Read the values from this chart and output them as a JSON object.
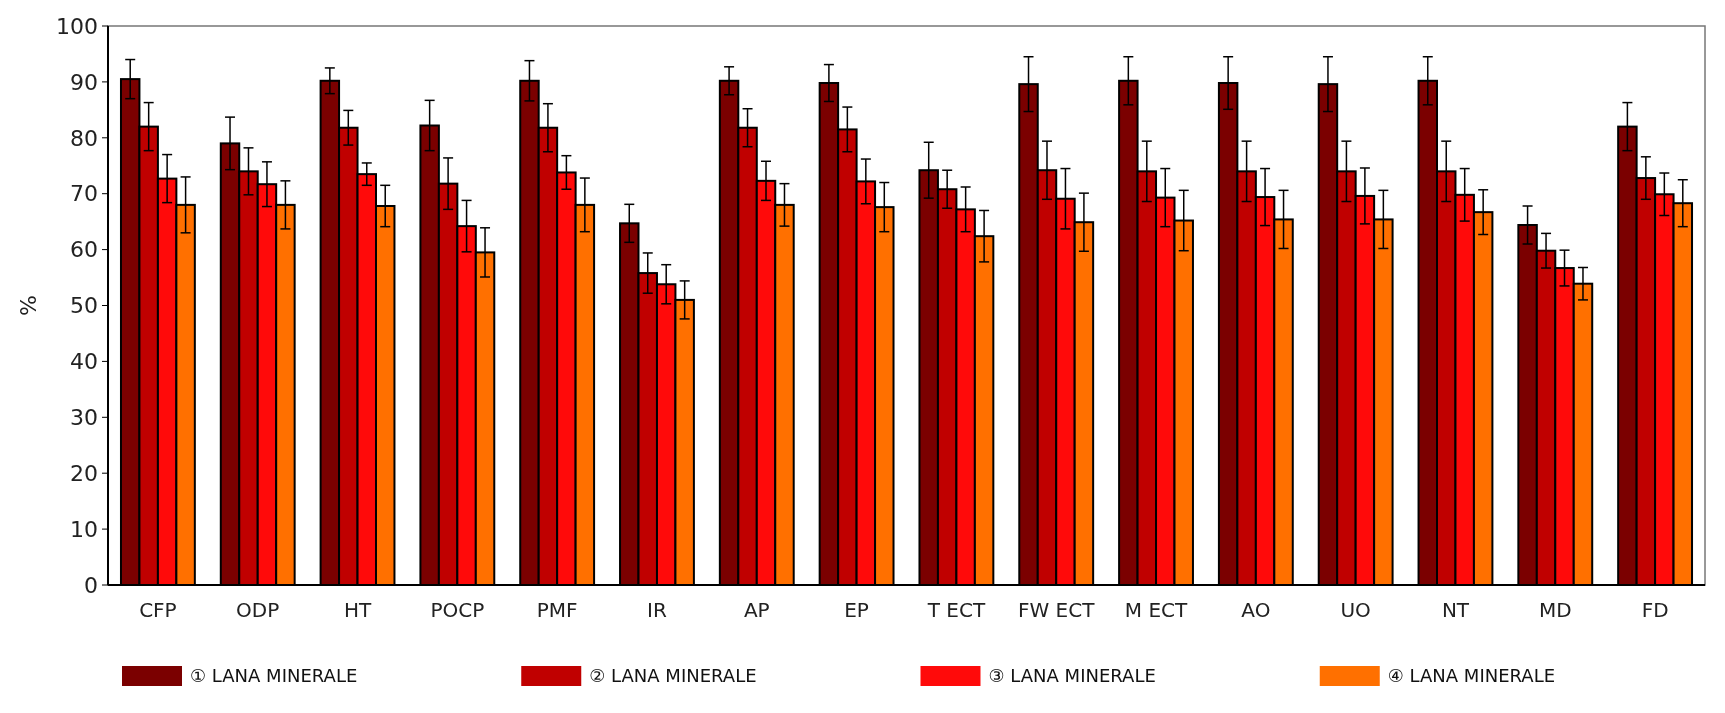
{
  "chart_data": {
    "type": "bar",
    "ylabel": "%",
    "categories": [
      "CFP",
      "ODP",
      "HT",
      "POCP",
      "PMF",
      "IR",
      "AP",
      "EP",
      "T ECT",
      "FW ECT",
      "M ECT",
      "AO",
      "UO",
      "NT",
      "MD",
      "FD"
    ],
    "ylim": [
      0,
      100
    ],
    "yticks": [
      0,
      10,
      20,
      30,
      40,
      50,
      60,
      70,
      80,
      90,
      100
    ],
    "grid": false,
    "legend": "bottom",
    "series": [
      {
        "name": "① LANA MINERALE",
        "color": "#7b0000",
        "values": [
          90.5,
          79,
          90.2,
          82.2,
          90.2,
          64.7,
          90.2,
          89.8,
          74.2,
          89.6,
          90.2,
          89.8,
          89.6,
          90.2,
          64.4,
          82
        ],
        "errors": [
          3.5,
          4.7,
          2.3,
          4.5,
          3.6,
          3.4,
          2.5,
          3.3,
          5,
          4.9,
          4.3,
          4.7,
          4.9,
          4.3,
          3.4,
          4.3
        ]
      },
      {
        "name": "② LANA MINERALE",
        "color": "#c00000",
        "values": [
          82,
          74,
          81.8,
          71.8,
          81.8,
          55.8,
          81.8,
          81.5,
          70.8,
          74.2,
          74,
          74,
          74,
          74,
          59.8,
          72.8
        ],
        "errors": [
          4.3,
          4.2,
          3.1,
          4.6,
          4.3,
          3.6,
          3.4,
          4,
          3.4,
          5.2,
          5.4,
          5.4,
          5.4,
          5.4,
          3.1,
          3.8
        ]
      },
      {
        "name": "③ LANA MINERALE",
        "color": "#ff0a0a",
        "values": [
          72.7,
          71.7,
          73.5,
          64.2,
          73.8,
          53.8,
          72.3,
          72.2,
          67.2,
          69.1,
          69.3,
          69.4,
          69.6,
          69.8,
          56.7,
          69.9
        ],
        "errors": [
          4.3,
          4,
          2,
          4.6,
          3,
          3.5,
          3.5,
          4,
          4,
          5.4,
          5.2,
          5.1,
          5,
          4.7,
          3.2,
          3.8
        ]
      },
      {
        "name": "④ LANA MINERALE",
        "color": "#ff7000",
        "values": [
          68,
          68,
          67.8,
          59.5,
          68,
          51,
          68,
          67.6,
          62.4,
          64.9,
          65.2,
          65.4,
          65.4,
          66.7,
          53.9,
          68.3
        ],
        "errors": [
          5,
          4.3,
          3.7,
          4.4,
          4.8,
          3.4,
          3.8,
          4.4,
          4.6,
          5.2,
          5.4,
          5.2,
          5.2,
          4,
          2.9,
          4.2
        ]
      }
    ]
  }
}
